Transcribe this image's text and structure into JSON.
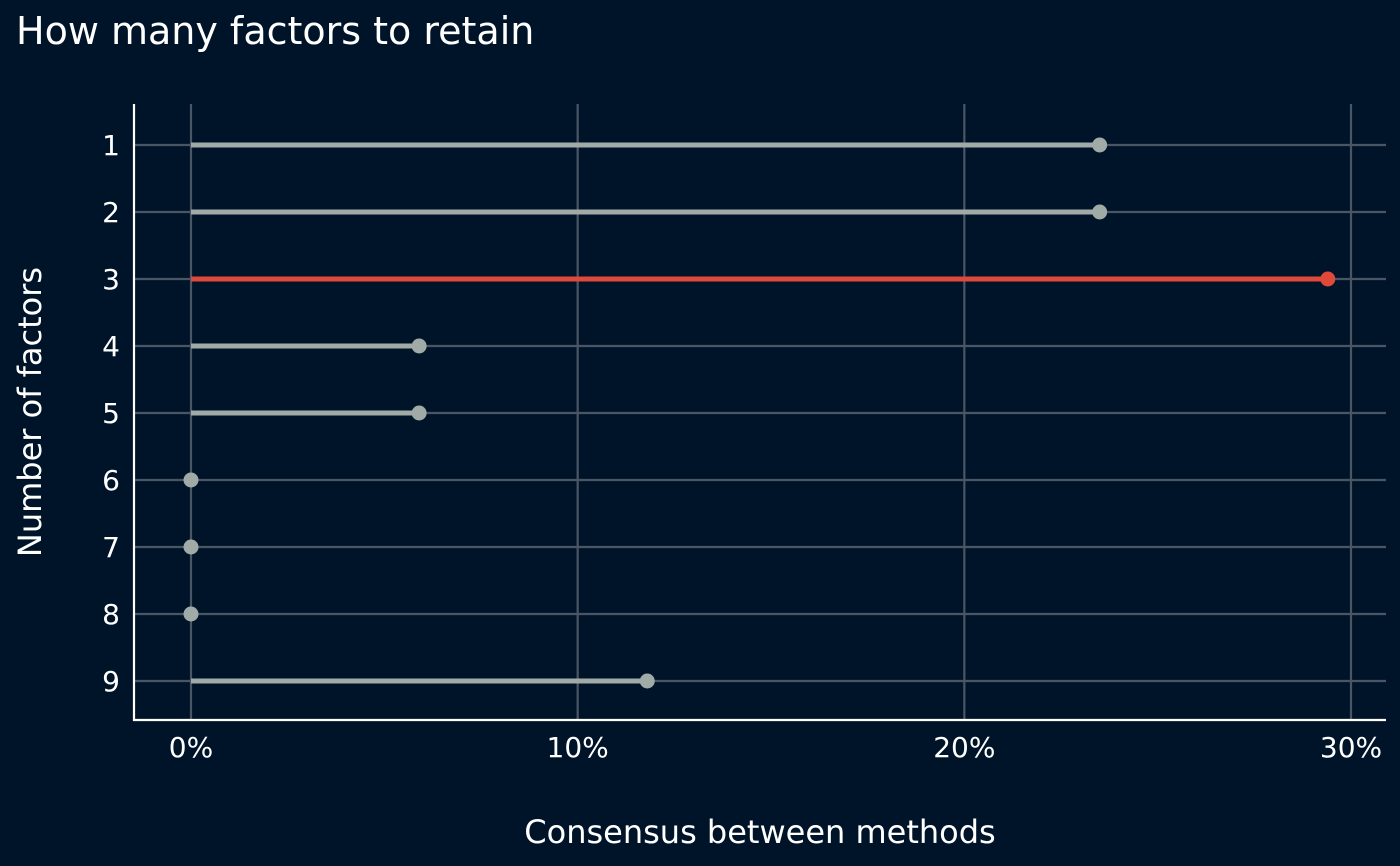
{
  "chart_data": {
    "type": "lollipop",
    "title": "How many factors to retain",
    "xlabel": "Consensus between methods",
    "ylabel": "Number of factors",
    "categories": [
      "1",
      "2",
      "3",
      "4",
      "5",
      "6",
      "7",
      "8",
      "9"
    ],
    "values": [
      0.235,
      0.235,
      0.294,
      0.059,
      0.059,
      0.0,
      0.0,
      0.0,
      0.118
    ],
    "highlight_category": "3",
    "xlim": [
      0,
      0.3
    ],
    "x_ticks": [
      0,
      0.1,
      0.2,
      0.3
    ],
    "x_tick_labels": [
      "0%",
      "10%",
      "20%",
      "30%"
    ],
    "grid": true,
    "colors": {
      "background": "#001429",
      "default": "#a0aaa6",
      "highlight": "#e0493a",
      "grid": "#4a5666",
      "axis": "#ffffff",
      "text": "#ffffff"
    }
  }
}
